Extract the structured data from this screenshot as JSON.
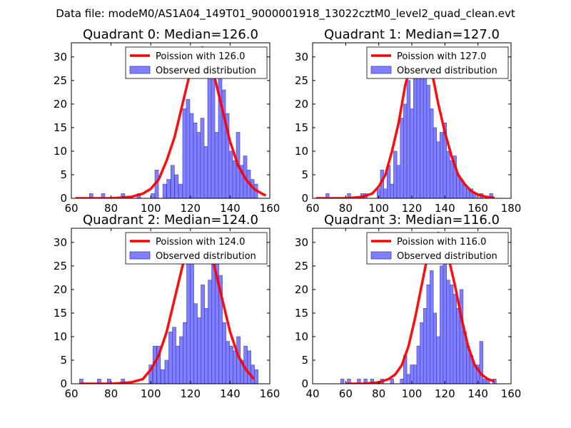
{
  "figure_title": "Data file: modeM0/AS1A04_149T01_9000001918_13022cztM0_level2_quad_clean.evt",
  "legend_observed_label": "Observed distribution",
  "colors": {
    "poisson_line": "#ff0000",
    "bar_fill": "#7f7fff",
    "bar_edge": "#3f3fbf"
  },
  "chart_data": [
    {
      "type": "bar",
      "title": "Quadrant 0: Median=126.0",
      "legend": [
        "Poission with 126.0",
        "Observed distribution"
      ],
      "xlim": [
        60,
        160
      ],
      "ylim": [
        0,
        33
      ],
      "xticks": [
        60,
        80,
        100,
        120,
        140,
        160
      ],
      "yticks": [
        0,
        5,
        10,
        15,
        20,
        25,
        30
      ],
      "median": 126.0,
      "bin_width": 1.8,
      "bars": [
        [
          70,
          1
        ],
        [
          72,
          0
        ],
        [
          76,
          1
        ],
        [
          80,
          0
        ],
        [
          86,
          1
        ],
        [
          90,
          0
        ],
        [
          94,
          1
        ],
        [
          98,
          0
        ],
        [
          101,
          1
        ],
        [
          103,
          6
        ],
        [
          105,
          0
        ],
        [
          107,
          3
        ],
        [
          109,
          4
        ],
        [
          111,
          7
        ],
        [
          113,
          5
        ],
        [
          115,
          3
        ],
        [
          117,
          19
        ],
        [
          118.8,
          21
        ],
        [
          120.6,
          18
        ],
        [
          122.4,
          16
        ],
        [
          124.2,
          14
        ],
        [
          126,
          17
        ],
        [
          127.8,
          11
        ],
        [
          129.6,
          32
        ],
        [
          131.4,
          29
        ],
        [
          133.2,
          14
        ],
        [
          135,
          27
        ],
        [
          136.8,
          23
        ],
        [
          138.6,
          18
        ],
        [
          140.4,
          10
        ],
        [
          142.2,
          8
        ],
        [
          144,
          14
        ],
        [
          145.8,
          7
        ],
        [
          147.6,
          9
        ],
        [
          149.4,
          6
        ],
        [
          151.2,
          4
        ],
        [
          153,
          3
        ],
        [
          156,
          0
        ]
      ],
      "curve_x": [
        62,
        70,
        80,
        90,
        96,
        100,
        104,
        108,
        112,
        116,
        120,
        124,
        126,
        128,
        132,
        136,
        140,
        144,
        148,
        152,
        156,
        158
      ],
      "curve_y": [
        0,
        0,
        0,
        0.3,
        1,
        2,
        4,
        8,
        13,
        20,
        27,
        31,
        32,
        31.5,
        26,
        19,
        12,
        7,
        4,
        2,
        1,
        0.6
      ]
    },
    {
      "type": "bar",
      "title": "Quadrant 1: Median=127.0",
      "legend": [
        "Poission with 127.0",
        "Observed distribution"
      ],
      "xlim": [
        60,
        180
      ],
      "ylim": [
        0,
        33
      ],
      "xticks": [
        60,
        80,
        100,
        120,
        140,
        160,
        180
      ],
      "yticks": [
        0,
        5,
        10,
        15,
        20,
        25,
        30
      ],
      "median": 127.0,
      "bin_width": 2.0,
      "bars": [
        [
          69,
          1
        ],
        [
          82,
          1
        ],
        [
          90,
          1
        ],
        [
          92,
          1
        ],
        [
          100,
          2
        ],
        [
          102,
          6
        ],
        [
          104,
          2
        ],
        [
          106,
          7
        ],
        [
          108,
          3
        ],
        [
          110,
          10
        ],
        [
          112,
          7
        ],
        [
          114,
          17
        ],
        [
          116,
          20
        ],
        [
          118,
          25
        ],
        [
          120,
          19
        ],
        [
          122,
          29
        ],
        [
          124,
          31
        ],
        [
          126,
          27
        ],
        [
          128,
          29
        ],
        [
          130,
          24
        ],
        [
          132,
          19
        ],
        [
          134,
          15
        ],
        [
          136,
          12
        ],
        [
          138,
          14
        ],
        [
          140,
          16
        ],
        [
          142,
          10
        ],
        [
          144,
          8
        ],
        [
          146,
          9
        ],
        [
          148,
          5
        ],
        [
          150,
          4
        ],
        [
          152,
          3
        ],
        [
          154,
          2
        ],
        [
          156,
          2
        ],
        [
          158,
          1
        ],
        [
          162,
          1
        ],
        [
          168,
          1
        ]
      ],
      "curve_x": [
        62,
        80,
        90,
        96,
        100,
        104,
        108,
        112,
        116,
        120,
        124,
        126,
        128,
        132,
        136,
        140,
        144,
        148,
        152,
        156,
        160,
        165,
        170
      ],
      "curve_y": [
        0,
        0,
        0.3,
        1,
        2.5,
        5,
        10,
        16,
        24,
        29,
        31,
        31.5,
        31,
        27,
        20,
        14,
        9,
        5,
        3,
        1.5,
        0.8,
        0.3,
        0.1
      ]
    },
    {
      "type": "bar",
      "title": "Quadrant 2: Median=124.0",
      "legend": [
        "Poission with 124.0",
        "Observed distribution"
      ],
      "xlim": [
        60,
        160
      ],
      "ylim": [
        0,
        33
      ],
      "xticks": [
        60,
        80,
        100,
        120,
        140,
        160
      ],
      "yticks": [
        0,
        5,
        10,
        15,
        20,
        25,
        30
      ],
      "median": 124.0,
      "bin_width": 1.8,
      "bars": [
        [
          65,
          1
        ],
        [
          74,
          1
        ],
        [
          79,
          1
        ],
        [
          86,
          1
        ],
        [
          100,
          4
        ],
        [
          102,
          8
        ],
        [
          104,
          8
        ],
        [
          106,
          3
        ],
        [
          108,
          5
        ],
        [
          110,
          11
        ],
        [
          111.8,
          12
        ],
        [
          113.6,
          8
        ],
        [
          115.4,
          10
        ],
        [
          117.2,
          13
        ],
        [
          119,
          26
        ],
        [
          120.8,
          27
        ],
        [
          122.6,
          17
        ],
        [
          124.4,
          14
        ],
        [
          126.2,
          21
        ],
        [
          128,
          16
        ],
        [
          129.8,
          22
        ],
        [
          131.6,
          26
        ],
        [
          133.4,
          28
        ],
        [
          135.2,
          23
        ],
        [
          137,
          13
        ],
        [
          138.8,
          9
        ],
        [
          140.6,
          8
        ],
        [
          142.4,
          7
        ],
        [
          144.2,
          10
        ],
        [
          146,
          5
        ],
        [
          147.8,
          8
        ],
        [
          149.6,
          7
        ],
        [
          151.4,
          4
        ],
        [
          153.2,
          3
        ]
      ],
      "curve_x": [
        64,
        80,
        90,
        96,
        100,
        104,
        108,
        112,
        116,
        120,
        124,
        128,
        132,
        136,
        140,
        144,
        148,
        152
      ],
      "curve_y": [
        0,
        0,
        0.3,
        1,
        3,
        6,
        11,
        18,
        25,
        30,
        31,
        30,
        25,
        18,
        11,
        6,
        3,
        1
      ]
    },
    {
      "type": "bar",
      "title": "Quadrant 3: Median=116.0",
      "legend": [
        "Poission with 116.0",
        "Observed distribution"
      ],
      "xlim": [
        40,
        160
      ],
      "ylim": [
        0,
        33
      ],
      "xticks": [
        40,
        60,
        80,
        100,
        120,
        140,
        160
      ],
      "yticks": [
        0,
        5,
        10,
        15,
        20,
        25,
        30
      ],
      "median": 116.0,
      "bin_width": 2.0,
      "bars": [
        [
          58,
          1
        ],
        [
          62,
          1
        ],
        [
          68,
          1
        ],
        [
          72,
          1
        ],
        [
          76,
          1
        ],
        [
          82,
          1
        ],
        [
          88,
          1
        ],
        [
          94,
          1
        ],
        [
          96,
          6
        ],
        [
          98,
          2
        ],
        [
          100,
          4
        ],
        [
          102,
          4
        ],
        [
          104,
          8
        ],
        [
          106,
          13
        ],
        [
          108,
          16
        ],
        [
          110,
          21
        ],
        [
          112,
          24
        ],
        [
          114,
          15
        ],
        [
          116,
          10
        ],
        [
          118,
          25
        ],
        [
          120,
          32
        ],
        [
          122,
          22
        ],
        [
          124,
          21
        ],
        [
          126,
          19
        ],
        [
          128,
          16
        ],
        [
          130,
          20
        ],
        [
          132,
          11
        ],
        [
          134,
          8
        ],
        [
          136,
          6
        ],
        [
          138,
          4
        ],
        [
          140,
          4
        ],
        [
          142,
          9
        ],
        [
          144,
          1
        ],
        [
          146,
          1
        ],
        [
          150,
          1
        ]
      ],
      "curve_x": [
        60,
        70,
        80,
        86,
        90,
        94,
        98,
        102,
        106,
        110,
        114,
        116,
        118,
        122,
        126,
        130,
        134,
        138,
        142,
        146,
        150
      ],
      "curve_y": [
        0,
        0,
        0.3,
        1,
        2,
        4,
        8,
        14,
        21,
        28,
        31,
        32,
        31,
        27,
        21,
        14,
        8,
        4,
        2,
        1,
        0.5
      ]
    }
  ]
}
